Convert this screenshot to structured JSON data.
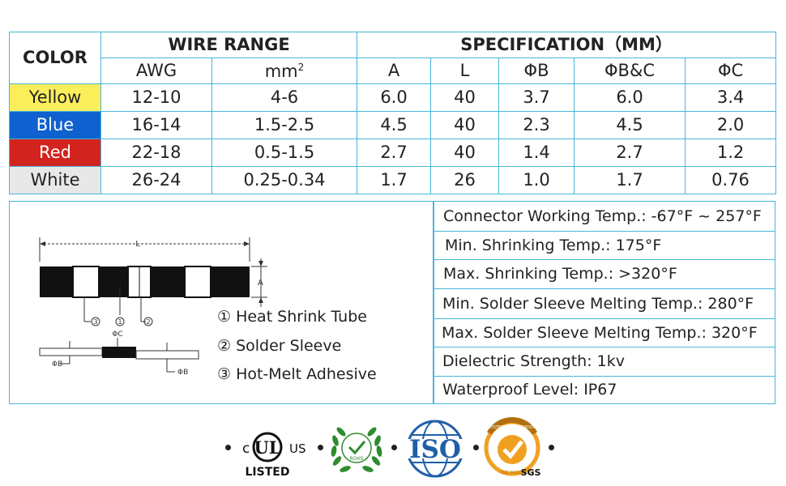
{
  "table": {
    "header": {
      "color": "COLOR",
      "wire_range": "WIRE RANGE",
      "specification": "SPECIFICATION（MM）",
      "awg": "AWG",
      "mm2": "mm",
      "mm2_sup": "2",
      "a": "A",
      "l": "L",
      "phi_b": "ΦB",
      "phi_bc": "ΦB&C",
      "phi_c": "ΦC"
    },
    "rows": [
      {
        "color": "Yellow",
        "awg": "12-10",
        "mm2": "4-6",
        "a": "6.0",
        "l": "40",
        "phi_b": "3.7",
        "phi_bc": "6.0",
        "phi_c": "3.4",
        "swatch": "#fbee5b"
      },
      {
        "color": "Blue",
        "awg": "16-14",
        "mm2": "1.5-2.5",
        "a": "4.5",
        "l": "40",
        "phi_b": "2.3",
        "phi_bc": "4.5",
        "phi_c": "2.0",
        "swatch": "#0f61cf"
      },
      {
        "color": "Red",
        "awg": "22-18",
        "mm2": "0.5-1.5",
        "a": "2.7",
        "l": "40",
        "phi_b": "1.4",
        "phi_bc": "2.7",
        "phi_c": "1.2",
        "swatch": "#d3231e"
      },
      {
        "color": "White",
        "awg": "26-24",
        "mm2": "0.25-0.34",
        "a": "1.7",
        "l": "26",
        "phi_b": "1.0",
        "phi_bc": "1.7",
        "phi_c": "0.76",
        "swatch": "#e8e8e8"
      }
    ]
  },
  "diagram": {
    "label_l": "L",
    "label_a": "A",
    "label_phi_c": "ΦC",
    "label_phi_b": "ΦB",
    "num_1": "1",
    "num_2": "2",
    "num_3": "3",
    "legend": [
      "① Heat Shrink Tube",
      "② Solder Sleeve",
      "③ Hot-Melt Adhesive"
    ]
  },
  "properties": [
    "Connector Working Temp.: -67°F ~ 257°F",
    "Min. Shrinking Temp.:  175°F",
    "Max. Shrinking Temp.:  >320°F",
    "Min. Solder Sleeve Melting Temp.:  280°F",
    "Max. Solder Sleeve Melting Temp.:  320°F",
    "Dielectric Strength: 1kv",
    "Waterproof Level: IP67"
  ],
  "badges": {
    "ul_c": "c",
    "ul_mark": "UL",
    "ul_us": "US",
    "ul_listed": "LISTED",
    "rohs": "ROHS",
    "iso": "ISO",
    "sgs_top": "SYSTEM CERTIFICATION",
    "sgs_bottom": "ISO 9001:2000",
    "sgs": "SGS"
  },
  "colors": {
    "border": "#48b5d9",
    "yellow": "#fbee5b",
    "blue": "#0f61cf",
    "red": "#d3231e",
    "white_cell": "#e8e8e8",
    "rohs_green": "#2e8b2e",
    "iso_blue": "#1f5fa8",
    "sgs_orange": "#f0a020"
  }
}
